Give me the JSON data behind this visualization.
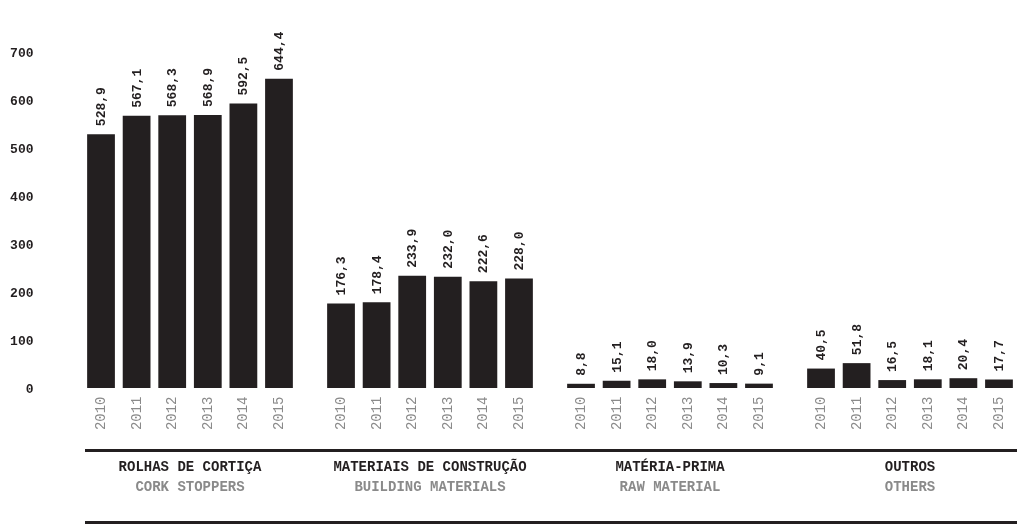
{
  "chart_data": [
    {
      "type": "bar",
      "xlabel": "ROLHAS DE CORTIÇA",
      "annotations": [
        "CORK STOPPERS"
      ],
      "categories": [
        "2010",
        "2011",
        "2012",
        "2013",
        "2014",
        "2015"
      ],
      "values": [
        528.9,
        567.1,
        568.3,
        568.9,
        592.5,
        644.4
      ],
      "value_labels": [
        "528,9",
        "567,1",
        "568,3",
        "568,9",
        "592,5",
        "644,4"
      ],
      "color": "#231f20",
      "ylim": [
        0,
        700
      ],
      "yticks": [
        0,
        100,
        200,
        300,
        400,
        500,
        600,
        700
      ]
    },
    {
      "type": "bar",
      "xlabel": "MATERIAIS DE CONSTRUÇÃO",
      "annotations": [
        "BUILDING MATERIALS"
      ],
      "categories": [
        "2010",
        "2011",
        "2012",
        "2013",
        "2014",
        "2015"
      ],
      "values": [
        176.3,
        178.4,
        233.9,
        232.0,
        222.6,
        228.0
      ],
      "value_labels": [
        "176,3",
        "178,4",
        "233,9",
        "232,0",
        "222,6",
        "228,0"
      ],
      "color": "#231f20",
      "ylim": [
        0,
        700
      ],
      "yticks": [
        0,
        100,
        200,
        300,
        400,
        500,
        600,
        700
      ],
      "tick_labels": "x"
    },
    {
      "type": "bar",
      "xlabel": "MATÉRIA-PRIMA",
      "annotations": [
        "RAW MATERIAL"
      ],
      "categories": [
        "2010",
        "2011",
        "2012",
        "2013",
        "2014",
        "2015"
      ],
      "values": [
        8.8,
        15.1,
        18.0,
        13.9,
        10.3,
        9.1
      ],
      "value_labels": [
        "8,8",
        "15,1",
        "18,0",
        "13,9",
        "10,3",
        "9,1"
      ],
      "color": "#231f20",
      "ylim": [
        0,
        700
      ],
      "yticks": [
        0,
        100,
        200,
        300,
        400,
        500,
        600,
        700
      ],
      "tick_labels": "x"
    },
    {
      "type": "bar",
      "xlabel": "OUTROS",
      "annotations": [
        "OTHERS"
      ],
      "categories": [
        "2010",
        "2011",
        "2012",
        "2013",
        "2014",
        "2015"
      ],
      "values": [
        40.5,
        51.8,
        16.5,
        18.1,
        20.4,
        17.7
      ],
      "value_labels": [
        "40,5",
        "51,8",
        "16,5",
        "18,1",
        "20,4",
        "17,7"
      ],
      "color": "#231f20",
      "ylim": [
        0,
        700
      ],
      "yticks": [
        0,
        100,
        200,
        300,
        400,
        500,
        600,
        700
      ],
      "tick_labels": "x"
    }
  ]
}
